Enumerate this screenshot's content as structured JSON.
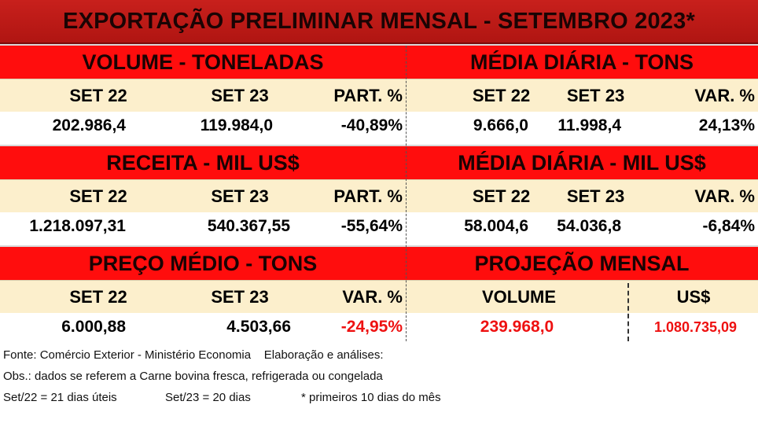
{
  "title": "EXPORTAÇÃO PRELIMINAR MENSAL  - SETEMBRO 2023*",
  "volume": {
    "left_header": "VOLUME - TONELADAS",
    "right_header": "MÉDIA DIÁRIA - TONS",
    "left_cols": [
      "SET 22",
      "SET 23",
      "PART. %"
    ],
    "right_cols": [
      "SET 22",
      "SET 23",
      "VAR. %"
    ],
    "left_vals": [
      "202.986,4",
      "119.984,0",
      "-40,89%"
    ],
    "right_vals": [
      "9.666,0",
      "11.998,4",
      "24,13%"
    ]
  },
  "receita": {
    "left_header": "RECEITA - MIL US$",
    "right_header": "MÉDIA DIÁRIA - MIL US$",
    "left_cols": [
      "SET 22",
      "SET 23",
      "PART. %"
    ],
    "right_cols": [
      "SET 22",
      "SET 23",
      "VAR. %"
    ],
    "left_vals": [
      "1.218.097,31",
      "540.367,55",
      "-55,64%"
    ],
    "right_vals": [
      "58.004,6",
      "54.036,8",
      "-6,84%"
    ]
  },
  "preco": {
    "left_header": "PREÇO MÉDIO - TONS",
    "right_header": "PROJEÇÃO  MENSAL",
    "left_cols": [
      "SET 22",
      "SET 23",
      "VAR. %"
    ],
    "right_cols": [
      "VOLUME",
      "US$"
    ],
    "left_vals": [
      "6.000,88",
      "4.503,66",
      "-24,95%"
    ],
    "right_vals": [
      "239.968,0",
      "1.080.735,09"
    ]
  },
  "footer": {
    "line1": "Fonte: Comércio Exterior - Ministério Economia    Elaboração e análises:",
    "line2": "Obs.: dados se referem a Carne bovina fresca, refrigerada ou congelada",
    "line3a": "Set/22 = 21 dias úteis",
    "line3b": "Set/23 = 20 dias",
    "line3c": "* primeiros 10 dias do mês"
  },
  "colors": {
    "title_bg": "#b8191a",
    "section_bg": "#ff0d0d",
    "band_bg": "#fcefcc",
    "negative_accent": "#ee1111"
  }
}
